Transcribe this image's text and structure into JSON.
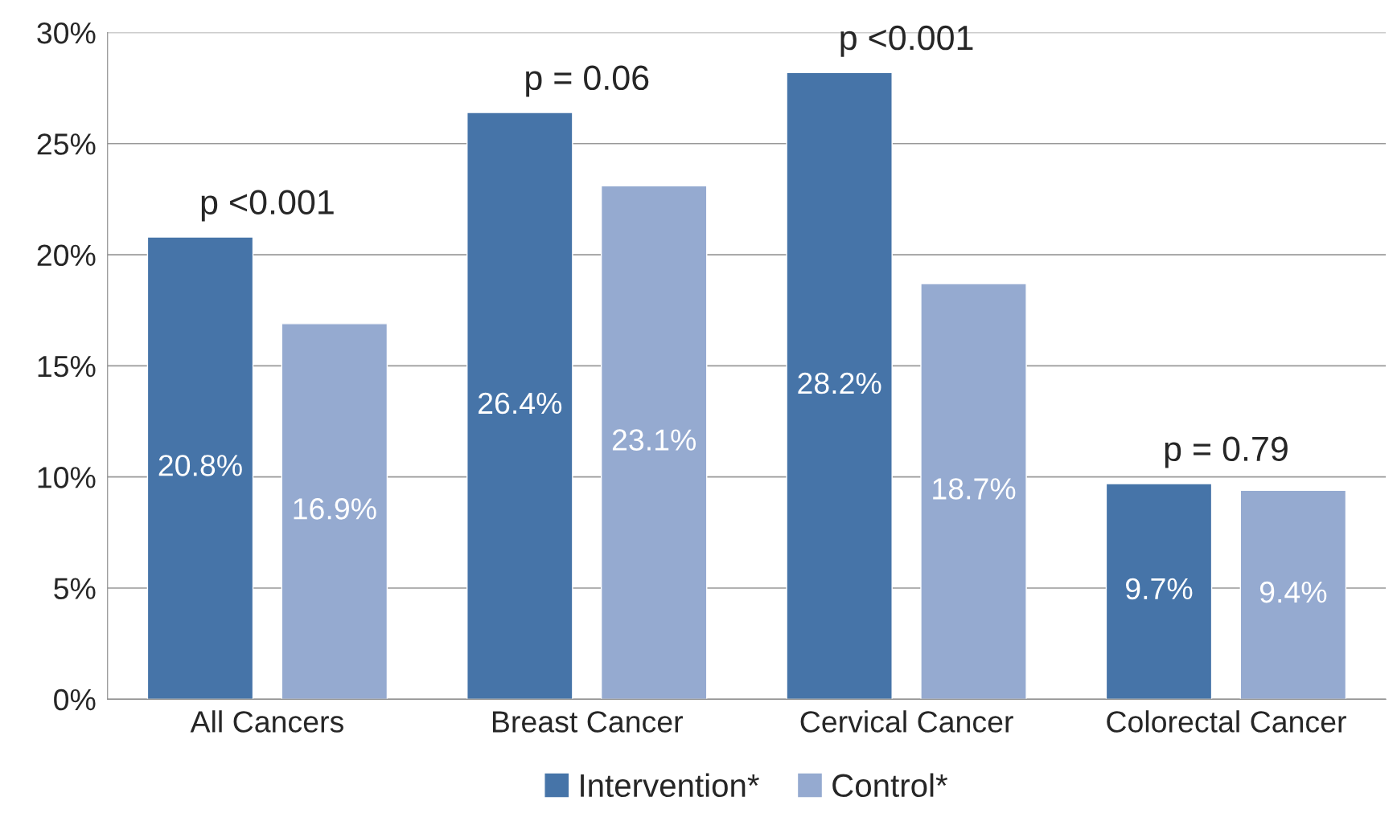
{
  "chart_data": {
    "type": "bar",
    "categories": [
      "All Cancers",
      "Breast Cancer",
      "Cervical Cancer",
      "Colorectal Cancer"
    ],
    "series": [
      {
        "name": "Intervention*",
        "color": "#4674a8",
        "values": [
          20.8,
          26.4,
          28.2,
          9.7
        ],
        "value_labels": [
          "20.8%",
          "26.4%",
          "28.2%",
          "9.7%"
        ]
      },
      {
        "name": "Control*",
        "color": "#95aad0",
        "values": [
          16.9,
          23.1,
          18.7,
          9.4
        ],
        "value_labels": [
          "16.9%",
          "23.1%",
          "18.7%",
          "9.4%"
        ]
      }
    ],
    "ylim": [
      0,
      30
    ],
    "yticks": [
      {
        "value": 0,
        "label": "0%"
      },
      {
        "value": 5,
        "label": "5%"
      },
      {
        "value": 10,
        "label": "10%"
      },
      {
        "value": 15,
        "label": "15%"
      },
      {
        "value": 20,
        "label": "20%"
      },
      {
        "value": 25,
        "label": "25%"
      },
      {
        "value": 30,
        "label": "30%"
      }
    ],
    "annotations": [
      "p <0.001",
      "p = 0.06",
      "p <0.001",
      "p = 0.79"
    ],
    "grid": "y",
    "legend": "bottom"
  }
}
